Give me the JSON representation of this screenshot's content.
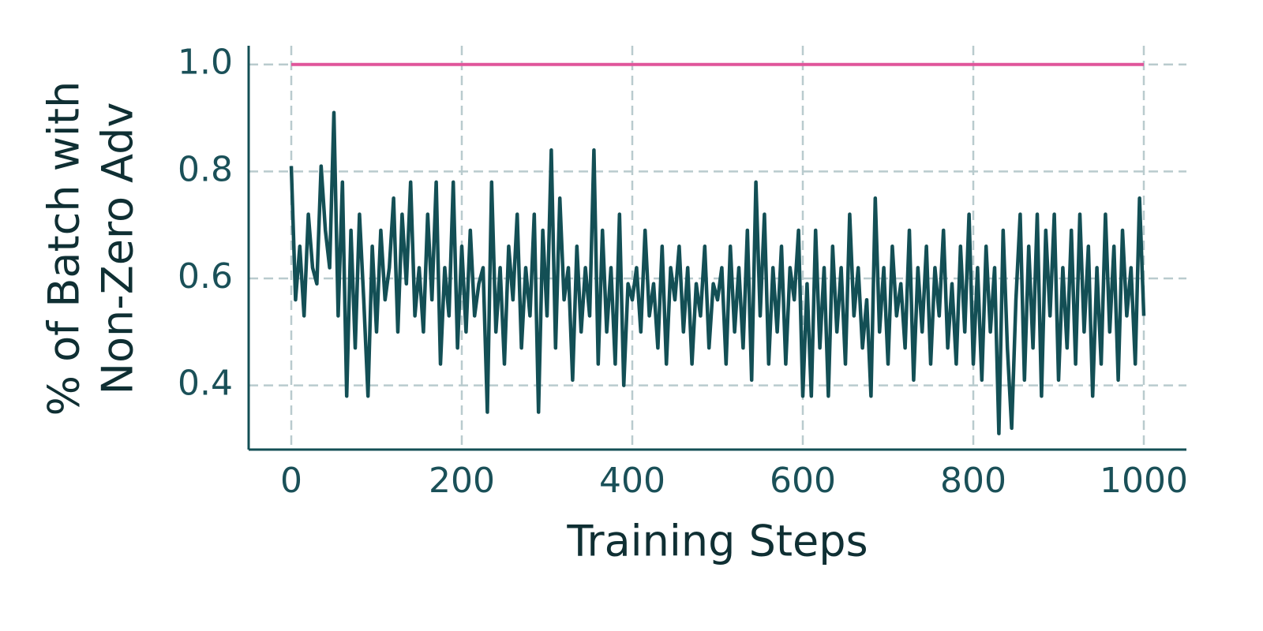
{
  "chart_data": {
    "type": "line",
    "xlabel": "Training Steps",
    "ylabel": [
      "% of Batch with",
      "Non-Zero Adv"
    ],
    "xlim": [
      -50,
      1050
    ],
    "ylim": [
      0.28,
      1.035
    ],
    "xticks": [
      0,
      200,
      400,
      600,
      800,
      1000
    ],
    "yticks": [
      0.4,
      0.6,
      0.8,
      {
        "value": 1,
        "label": "1.0"
      }
    ],
    "grid": true,
    "series": [
      {
        "color": "#134f55",
        "x": [
          0,
          5,
          10,
          15,
          20,
          25,
          30,
          35,
          40,
          45,
          50,
          55,
          60,
          65,
          70,
          75,
          80,
          85,
          90,
          95,
          100,
          105,
          110,
          115,
          120,
          125,
          130,
          135,
          140,
          145,
          150,
          155,
          160,
          165,
          170,
          175,
          180,
          185,
          190,
          195,
          200,
          205,
          210,
          215,
          220,
          225,
          230,
          235,
          240,
          245,
          250,
          255,
          260,
          265,
          270,
          275,
          280,
          285,
          290,
          295,
          300,
          305,
          310,
          315,
          320,
          325,
          330,
          335,
          340,
          345,
          350,
          355,
          360,
          365,
          370,
          375,
          380,
          385,
          390,
          395,
          400,
          405,
          410,
          415,
          420,
          425,
          430,
          435,
          440,
          445,
          450,
          455,
          460,
          465,
          470,
          475,
          480,
          485,
          490,
          495,
          500,
          505,
          510,
          515,
          520,
          525,
          530,
          535,
          540,
          545,
          550,
          555,
          560,
          565,
          570,
          575,
          580,
          585,
          590,
          595,
          600,
          605,
          610,
          615,
          620,
          625,
          630,
          635,
          640,
          645,
          650,
          655,
          660,
          665,
          670,
          675,
          680,
          685,
          690,
          695,
          700,
          705,
          710,
          715,
          720,
          725,
          730,
          735,
          740,
          745,
          750,
          755,
          760,
          765,
          770,
          775,
          780,
          785,
          790,
          795,
          800,
          805,
          810,
          815,
          820,
          825,
          830,
          835,
          840,
          845,
          850,
          855,
          860,
          865,
          870,
          875,
          880,
          885,
          890,
          895,
          900,
          905,
          910,
          915,
          920,
          925,
          930,
          935,
          940,
          945,
          950,
          955,
          960,
          965,
          970,
          975,
          980,
          985,
          990,
          995,
          1000
        ],
        "values": [
          0.81,
          0.56,
          0.66,
          0.53,
          0.72,
          0.62,
          0.59,
          0.81,
          0.69,
          0.62,
          0.91,
          0.53,
          0.78,
          0.38,
          0.69,
          0.47,
          0.72,
          0.56,
          0.38,
          0.66,
          0.5,
          0.69,
          0.56,
          0.62,
          0.75,
          0.5,
          0.72,
          0.59,
          0.78,
          0.53,
          0.62,
          0.5,
          0.72,
          0.56,
          0.78,
          0.44,
          0.62,
          0.53,
          0.78,
          0.47,
          0.66,
          0.5,
          0.69,
          0.53,
          0.59,
          0.62,
          0.35,
          0.78,
          0.5,
          0.62,
          0.44,
          0.66,
          0.56,
          0.72,
          0.47,
          0.62,
          0.53,
          0.72,
          0.35,
          0.69,
          0.53,
          0.84,
          0.47,
          0.75,
          0.56,
          0.62,
          0.41,
          0.66,
          0.5,
          0.62,
          0.53,
          0.84,
          0.44,
          0.69,
          0.5,
          0.62,
          0.44,
          0.72,
          0.4,
          0.59,
          0.56,
          0.62,
          0.5,
          0.69,
          0.53,
          0.59,
          0.47,
          0.66,
          0.44,
          0.62,
          0.56,
          0.66,
          0.5,
          0.62,
          0.44,
          0.59,
          0.53,
          0.66,
          0.47,
          0.59,
          0.56,
          0.62,
          0.44,
          0.66,
          0.5,
          0.62,
          0.47,
          0.69,
          0.41,
          0.78,
          0.53,
          0.72,
          0.44,
          0.62,
          0.5,
          0.66,
          0.44,
          0.62,
          0.56,
          0.69,
          0.38,
          0.59,
          0.38,
          0.69,
          0.47,
          0.62,
          0.38,
          0.66,
          0.5,
          0.62,
          0.44,
          0.72,
          0.53,
          0.62,
          0.47,
          0.56,
          0.38,
          0.75,
          0.5,
          0.62,
          0.44,
          0.66,
          0.53,
          0.59,
          0.47,
          0.69,
          0.41,
          0.62,
          0.5,
          0.66,
          0.44,
          0.62,
          0.53,
          0.69,
          0.47,
          0.59,
          0.44,
          0.66,
          0.5,
          0.72,
          0.44,
          0.62,
          0.41,
          0.66,
          0.5,
          0.62,
          0.31,
          0.69,
          0.47,
          0.32,
          0.56,
          0.72,
          0.41,
          0.66,
          0.47,
          0.72,
          0.38,
          0.69,
          0.53,
          0.72,
          0.41,
          0.62,
          0.47,
          0.69,
          0.44,
          0.72,
          0.5,
          0.66,
          0.38,
          0.62,
          0.44,
          0.72,
          0.5,
          0.66,
          0.41,
          0.69,
          0.53,
          0.62,
          0.44,
          0.75,
          0.53
        ]
      },
      {
        "color": "#e0559a",
        "x": [
          0,
          1000
        ],
        "values": [
          1,
          1
        ]
      }
    ]
  }
}
